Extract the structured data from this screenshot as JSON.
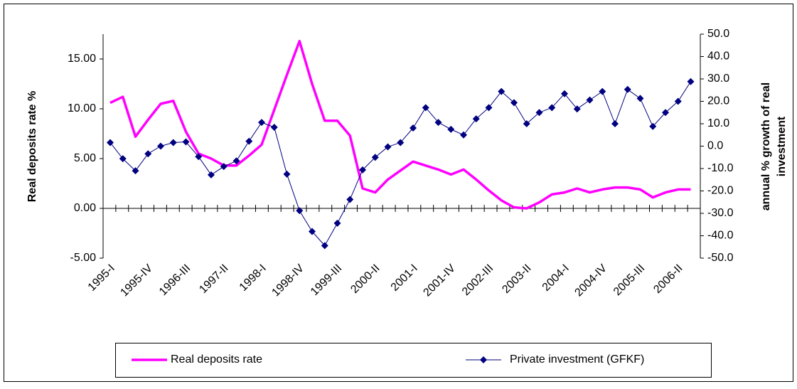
{
  "chart_data": {
    "type": "line",
    "y_label": "Real deposits rate %",
    "y2_label": [
      "annual % growth of real",
      "investment"
    ],
    "categories": [
      "1995-I",
      null,
      null,
      "1995-IV",
      null,
      null,
      "1996-III",
      null,
      null,
      "1997-II",
      null,
      null,
      "1998-I",
      null,
      null,
      "1998-IV",
      null,
      null,
      "1999-III",
      null,
      null,
      "2000-II",
      null,
      null,
      "2001-I",
      null,
      null,
      "2001-IV",
      null,
      null,
      "2002-III",
      null,
      null,
      "2003-II",
      null,
      null,
      "2004-I",
      null,
      null,
      "2004-IV",
      null,
      null,
      "2005-III",
      null,
      null,
      "2006-II",
      null
    ],
    "series": [
      {
        "name": "Real deposits rate",
        "color": "#ff00ff",
        "axis": "y",
        "marker": "none",
        "values": [
          10.6,
          11.2,
          7.2,
          8.9,
          10.5,
          10.8,
          7.7,
          5.5,
          5.0,
          4.3,
          4.3,
          5.3,
          6.4,
          9.9,
          13.4,
          16.8,
          12.5,
          8.8,
          8.8,
          7.3,
          2.0,
          1.6,
          2.9,
          3.8,
          4.7,
          4.3,
          3.9,
          3.4,
          3.9,
          2.9,
          1.8,
          0.8,
          0.1,
          0.0,
          0.6,
          1.4,
          1.6,
          2.0,
          1.6,
          1.9,
          2.1,
          2.1,
          1.9,
          1.1,
          1.6,
          1.9,
          1.9
        ]
      },
      {
        "name": "Private investment (GFKF)",
        "color": "#000080",
        "axis": "y2",
        "marker": "diamond",
        "values": [
          1.6,
          -5.6,
          -11,
          -3.4,
          0,
          1.6,
          1.9,
          -4.7,
          -12.8,
          -9.1,
          -6.6,
          2.2,
          10.6,
          8.4,
          -12.5,
          -28.8,
          -38.1,
          -44.4,
          -34.4,
          -23.8,
          -10.6,
          -5,
          -0.3,
          1.6,
          8.1,
          17.2,
          10.6,
          7.5,
          5,
          12.2,
          17.2,
          24.4,
          19.4,
          10,
          15,
          17.2,
          23.4,
          16.6,
          20.6,
          24.4,
          10,
          25.3,
          21.3,
          8.8,
          15,
          20,
          28.8
        ]
      }
    ],
    "ylim": [
      -5,
      17.5
    ],
    "yticks": [
      {
        "value": -5,
        "label": "-5.00"
      },
      {
        "value": 0,
        "label": "0.00"
      },
      {
        "value": 5,
        "label": "5.00"
      },
      {
        "value": 10,
        "label": "10.00"
      },
      {
        "value": 15,
        "label": "15.00"
      }
    ],
    "y2lim": [
      -50,
      50
    ],
    "y2ticks": [
      {
        "value": -50,
        "label": "-50.0"
      },
      {
        "value": -40,
        "label": "-40.0"
      },
      {
        "value": -30,
        "label": "-30.0"
      },
      {
        "value": -20,
        "label": "-20.0"
      },
      {
        "value": -10,
        "label": "-10.0"
      },
      {
        "value": 0,
        "label": "0.0"
      },
      {
        "value": 10,
        "label": "10.0"
      },
      {
        "value": 20,
        "label": "20.0"
      },
      {
        "value": 30,
        "label": "30.0"
      },
      {
        "value": 40,
        "label": "40.0"
      },
      {
        "value": 50,
        "label": "50.0"
      }
    ],
    "legend": "bottom"
  }
}
